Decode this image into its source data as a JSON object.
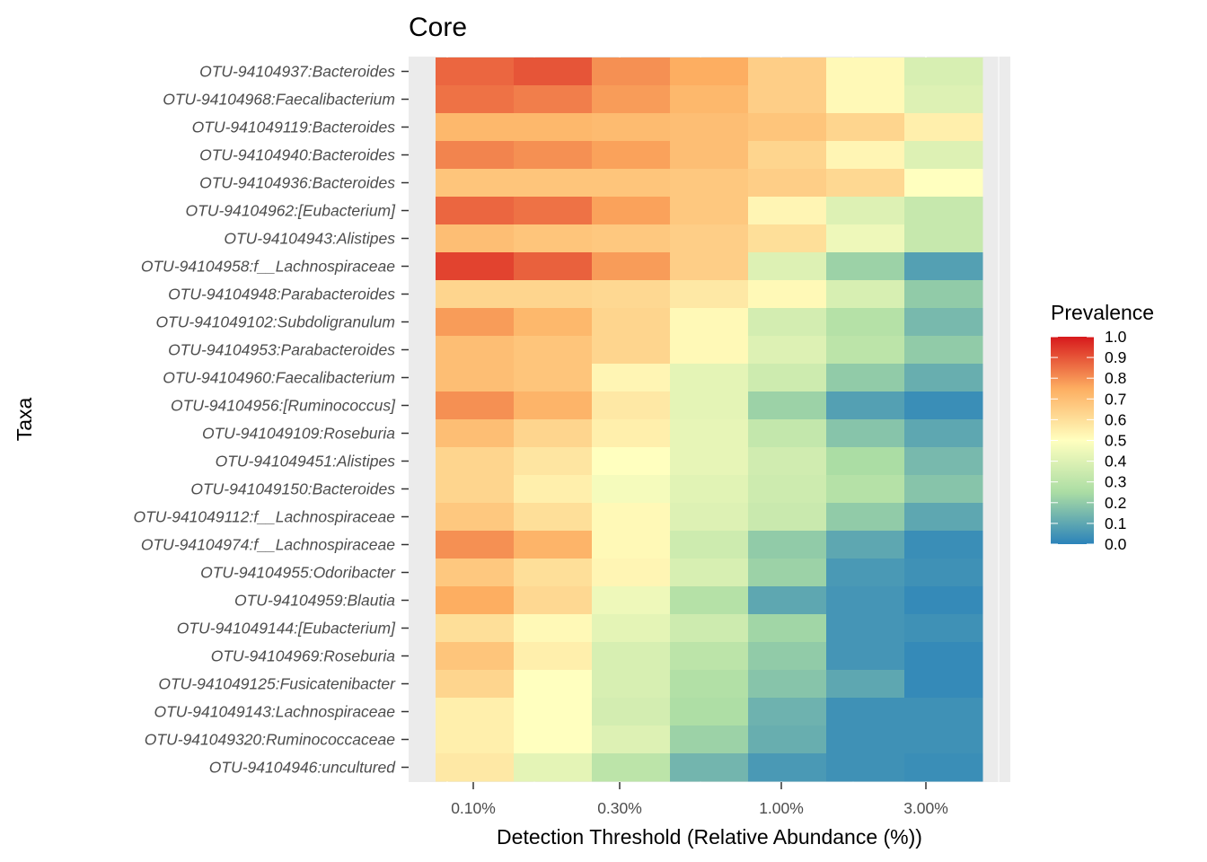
{
  "chart_data": {
    "type": "heatmap",
    "title": "Core",
    "xlabel": "Detection Threshold (Relative Abundance (%))",
    "ylabel": "Taxa",
    "x_ticks": [
      "0.10%",
      "0.30%",
      "1.00%",
      "3.00%"
    ],
    "taxa": [
      "OTU-94104937:Bacteroides",
      "OTU-94104968:Faecalibacterium",
      "OTU-941049119:Bacteroides",
      "OTU-94104940:Bacteroides",
      "OTU-94104936:Bacteroides",
      "OTU-94104962:[Eubacterium]",
      "OTU-94104943:Alistipes",
      "OTU-94104958:f__Lachnospiraceae",
      "OTU-94104948:Parabacteroides",
      "OTU-941049102:Subdoligranulum",
      "OTU-94104953:Parabacteroides",
      "OTU-94104960:Faecalibacterium",
      "OTU-94104956:[Ruminococcus]",
      "OTU-941049109:Roseburia",
      "OTU-941049451:Alistipes",
      "OTU-941049150:Bacteroides",
      "OTU-941049112:f__Lachnospiraceae",
      "OTU-94104974:f__Lachnospiraceae",
      "OTU-94104955:Odoribacter",
      "OTU-94104959:Blautia",
      "OTU-941049144:[Eubacterium]",
      "OTU-94104969:Roseburia",
      "OTU-941049125:Fusicatenibacter",
      "OTU-941049143:Lachnospiraceae",
      "OTU-941049320:Ruminococcaceae",
      "OTU-94104946:uncultured"
    ],
    "prevalence": [
      [
        0.87,
        0.9,
        0.8,
        0.75,
        0.65,
        0.52,
        0.38
      ],
      [
        0.85,
        0.83,
        0.78,
        0.72,
        0.65,
        0.52,
        0.4
      ],
      [
        0.72,
        0.72,
        0.71,
        0.7,
        0.68,
        0.63,
        0.55
      ],
      [
        0.82,
        0.8,
        0.77,
        0.7,
        0.63,
        0.53,
        0.4
      ],
      [
        0.68,
        0.68,
        0.68,
        0.67,
        0.65,
        0.62,
        0.5
      ],
      [
        0.87,
        0.85,
        0.77,
        0.67,
        0.53,
        0.4,
        0.33
      ],
      [
        0.7,
        0.68,
        0.67,
        0.65,
        0.6,
        0.45,
        0.33
      ],
      [
        0.93,
        0.88,
        0.78,
        0.65,
        0.4,
        0.22,
        0.08
      ],
      [
        0.63,
        0.63,
        0.62,
        0.57,
        0.52,
        0.38,
        0.2
      ],
      [
        0.78,
        0.72,
        0.63,
        0.52,
        0.37,
        0.28,
        0.15
      ],
      [
        0.7,
        0.68,
        0.63,
        0.52,
        0.4,
        0.3,
        0.2
      ],
      [
        0.7,
        0.68,
        0.53,
        0.42,
        0.35,
        0.2,
        0.12
      ],
      [
        0.8,
        0.73,
        0.57,
        0.42,
        0.22,
        0.08,
        0.03
      ],
      [
        0.7,
        0.63,
        0.55,
        0.43,
        0.32,
        0.18,
        0.1
      ],
      [
        0.63,
        0.58,
        0.5,
        0.43,
        0.36,
        0.25,
        0.15
      ],
      [
        0.63,
        0.55,
        0.47,
        0.41,
        0.35,
        0.28,
        0.18
      ],
      [
        0.67,
        0.6,
        0.52,
        0.4,
        0.34,
        0.2,
        0.1
      ],
      [
        0.8,
        0.73,
        0.52,
        0.35,
        0.2,
        0.1,
        0.03
      ],
      [
        0.67,
        0.6,
        0.53,
        0.38,
        0.22,
        0.06,
        0.04
      ],
      [
        0.75,
        0.62,
        0.45,
        0.28,
        0.1,
        0.05,
        0.02
      ],
      [
        0.6,
        0.52,
        0.42,
        0.35,
        0.23,
        0.05,
        0.04
      ],
      [
        0.68,
        0.55,
        0.38,
        0.3,
        0.2,
        0.05,
        0.02
      ],
      [
        0.63,
        0.5,
        0.38,
        0.27,
        0.18,
        0.1,
        0.02
      ],
      [
        0.55,
        0.5,
        0.37,
        0.26,
        0.13,
        0.04,
        0.04
      ],
      [
        0.55,
        0.5,
        0.4,
        0.22,
        0.12,
        0.04,
        0.04
      ],
      [
        0.57,
        0.42,
        0.3,
        0.14,
        0.06,
        0.04,
        0.03
      ]
    ],
    "legend": {
      "title": "Prevalence",
      "ticks": [
        "1.0",
        "0.9",
        "0.8",
        "0.7",
        "0.6",
        "0.5",
        "0.4",
        "0.3",
        "0.2",
        "0.1",
        "0.0"
      ],
      "placement": "right"
    },
    "color_scale": [
      "#2b83ba",
      "#abdda4",
      "#ffffbf",
      "#fdae61",
      "#d7191c"
    ],
    "panel_background": "#ebebeb"
  }
}
